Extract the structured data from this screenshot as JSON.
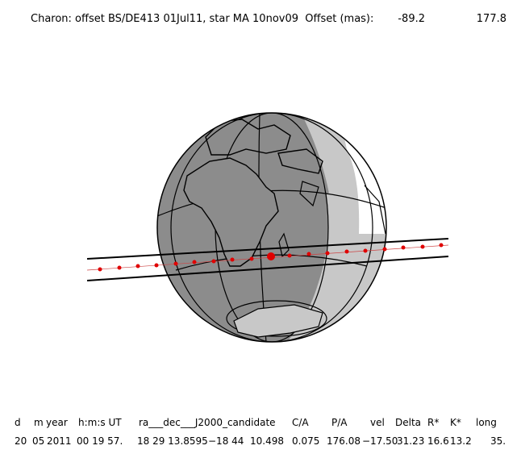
{
  "header": {
    "title": "Charon: offset BS/DE413 01Jul11, star MA 10nov09  Offset (mas):",
    "offset_values": [
      "-89.2",
      "177.8"
    ]
  },
  "table": {
    "columns": [
      "d",
      "m",
      "year",
      "h:m:s UT",
      "ra___dec___J2000_candidate",
      "C/A",
      "P/A",
      "vel",
      "Delta",
      "R*",
      "K*",
      "long"
    ],
    "values": [
      "20",
      "05",
      "2011",
      "00 19 57.",
      "18 29 13.8595",
      "−18 44  10.498",
      "0.075",
      "176.08",
      "−17.50",
      "31.23",
      "16.6",
      "13.2",
      "35."
    ]
  }
}
